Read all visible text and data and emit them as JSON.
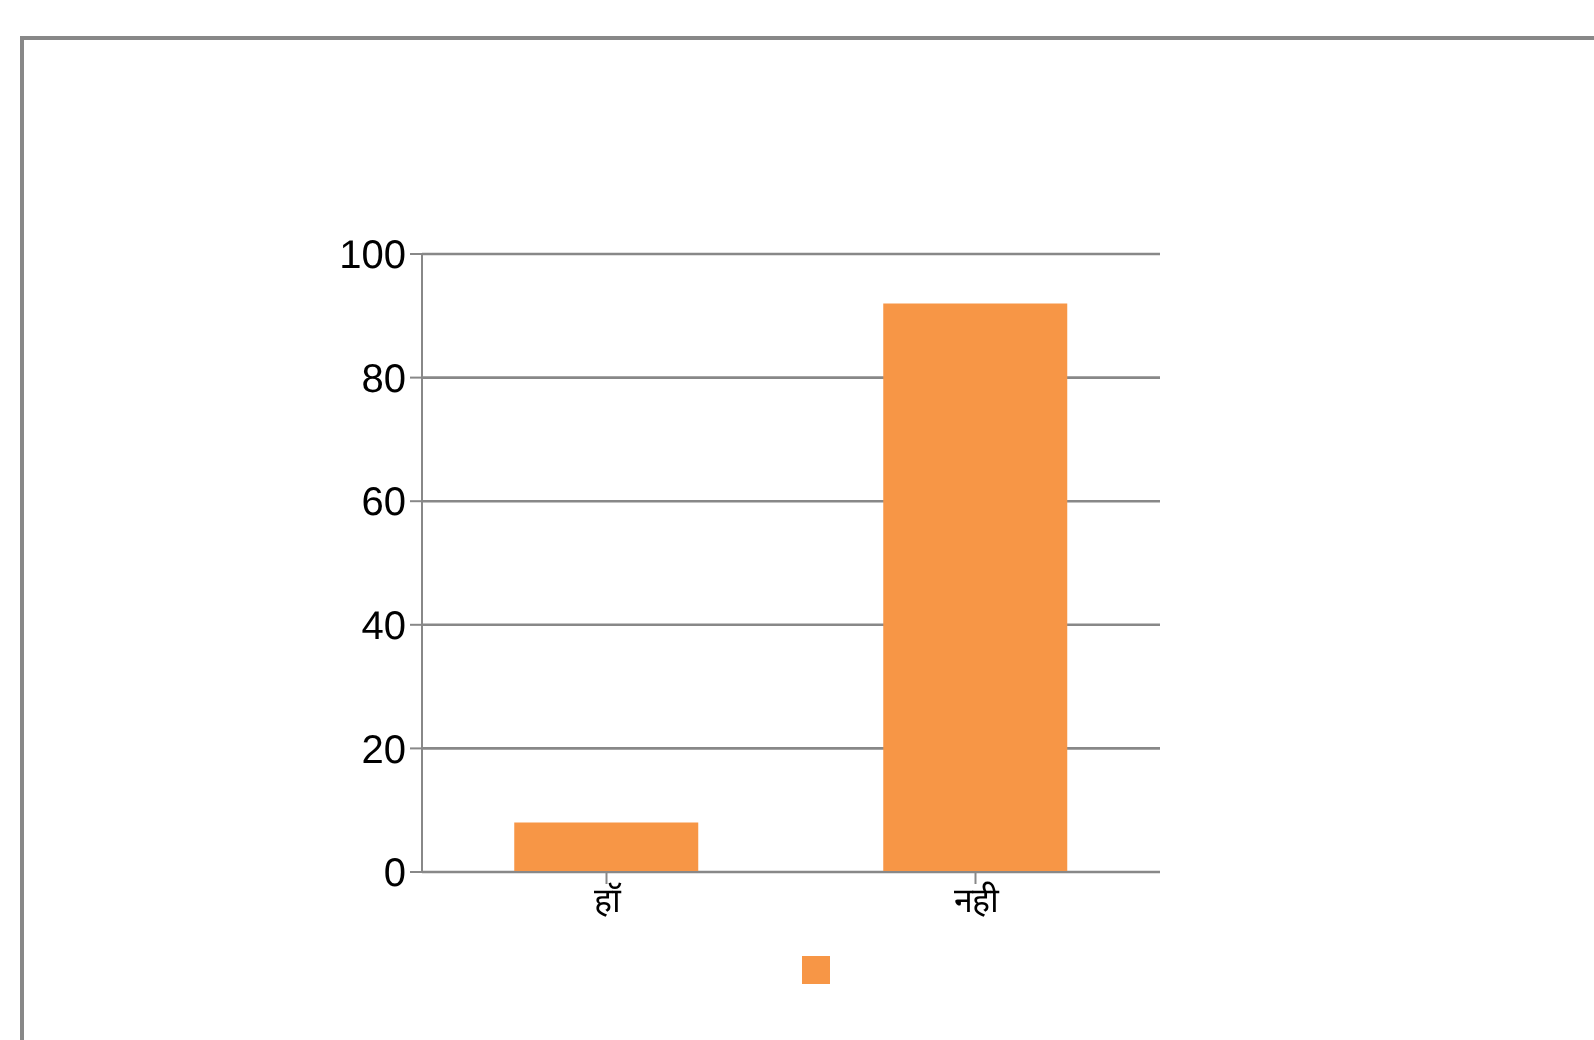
{
  "chart_data": {
    "type": "bar",
    "categories": [
      "हॉ",
      "नही"
    ],
    "series": [
      {
        "color": "#f79646",
        "values": [
          8,
          92
        ]
      }
    ],
    "ylim": [
      0,
      100
    ],
    "yticks": [
      0,
      20,
      40,
      60,
      80,
      100
    ],
    "grid": "y"
  }
}
